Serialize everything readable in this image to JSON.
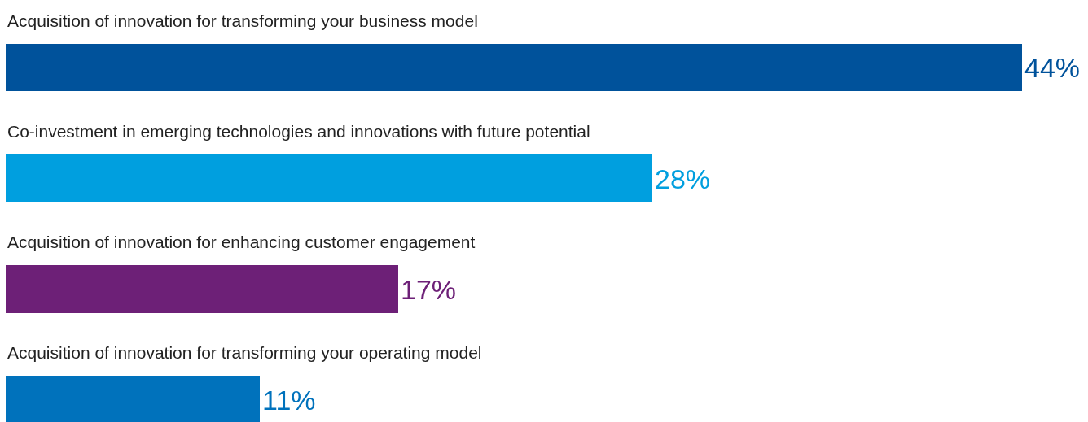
{
  "chart_data": {
    "type": "bar",
    "orientation": "horizontal",
    "categories": [
      "Acquisition of innovation for transforming your business model",
      "Co-investment in emerging technologies and innovations with future potential",
      "Acquisition of innovation for enhancing customer engagement",
      "Acquisition of innovation for transforming your operating model"
    ],
    "values": [
      44,
      28,
      17,
      11
    ],
    "colors": [
      "#00529b",
      "#009fdf",
      "#6d2077",
      "#0072bc"
    ],
    "value_labels": [
      "44%",
      "28%",
      "17%",
      "11%"
    ]
  }
}
